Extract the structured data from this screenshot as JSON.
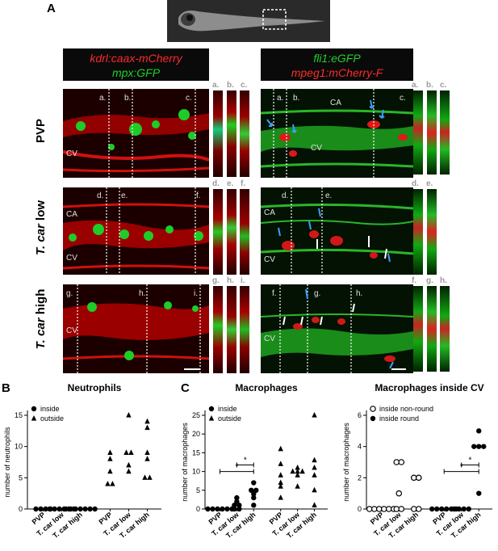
{
  "panel_a_label": "A",
  "panel_b_label": "B",
  "panel_c_label": "C",
  "left_header": {
    "line1": "kdrl:caax-mCherry",
    "line2": "mpx:GFP",
    "line1_color": "#ff2a2a",
    "line2_color": "#22d02a"
  },
  "right_header": {
    "line1": "fli1:eGFP",
    "line2": "mpeg1:mCherry-F",
    "line1_color": "#22d02a",
    "line2_color": "#ff2a2a"
  },
  "rows": [
    {
      "label": "PVP",
      "italic_part": "",
      "plain_part": "PVP"
    },
    {
      "label": "T. car low",
      "italic_part": "T. car",
      "plain_part": " low"
    },
    {
      "label": "T. car high",
      "italic_part": "T. car",
      "plain_part": " high"
    }
  ],
  "left_slices": [
    [
      "a.",
      "b.",
      "c."
    ],
    [
      "d.",
      "e.",
      "f."
    ],
    [
      "g.",
      "h.",
      "i."
    ]
  ],
  "right_slices": [
    [
      "a.",
      "b.",
      "c."
    ],
    [
      "d.",
      "e."
    ],
    [
      "f.",
      "g.",
      "h."
    ]
  ],
  "vessel_labels": {
    "ca": "CA",
    "cv": "CV"
  },
  "chart_data": [
    {
      "type": "scatter",
      "title": "Neutrophils",
      "ylabel": "number of neutrophils",
      "xlabel": "",
      "ylim": [
        0,
        15
      ],
      "yticks": [
        0,
        5,
        10,
        15
      ],
      "categories": [
        "PVP",
        "T. car low",
        "T. car high",
        "PVP",
        "T. car low",
        "T. car high"
      ],
      "legend": [
        {
          "name": "inside",
          "marker": "circle"
        },
        {
          "name": "outside",
          "marker": "triangle"
        }
      ],
      "legend_position": "top-left",
      "series": [
        {
          "name": "inside",
          "marker": "circle",
          "groups": [
            [
              0,
              0,
              0,
              0
            ],
            [
              0,
              0,
              0,
              0,
              0,
              0
            ],
            [
              0,
              0,
              0,
              0,
              0,
              0,
              0
            ]
          ]
        },
        {
          "name": "outside",
          "marker": "triangle",
          "groups": [
            [
              4,
              4,
              6,
              8,
              9
            ],
            [
              6,
              7,
              9,
              9,
              15
            ],
            [
              5,
              5,
              8,
              9,
              13,
              14
            ]
          ]
        }
      ],
      "significance": []
    },
    {
      "type": "scatter",
      "title": "Macrophages",
      "ylabel": "number of macrophages",
      "xlabel": "",
      "ylim": [
        0,
        25
      ],
      "yticks": [
        0,
        5,
        10,
        15,
        20,
        25
      ],
      "categories": [
        "PVP",
        "T. car low",
        "T. car high",
        "PVP",
        "T. car low",
        "T. car high"
      ],
      "legend": [
        {
          "name": "inside",
          "marker": "circle"
        },
        {
          "name": "outside",
          "marker": "triangle"
        }
      ],
      "legend_position": "top-left",
      "series": [
        {
          "name": "inside",
          "marker": "circle",
          "groups": [
            [
              0,
              0,
              0,
              0,
              0,
              0
            ],
            [
              0,
              0,
              1,
              1,
              2,
              3
            ],
            [
              1,
              3,
              4,
              5,
              5,
              7
            ]
          ]
        },
        {
          "name": "outside",
          "marker": "triangle",
          "groups": [
            [
              3,
              6,
              7,
              9,
              12,
              16
            ],
            [
              6,
              9,
              10,
              10,
              10,
              11
            ],
            [
              1,
              5,
              9,
              11,
              13,
              25
            ]
          ]
        }
      ],
      "significance": [
        {
          "from": 0,
          "to": 2,
          "label": "*"
        },
        {
          "from": 1,
          "to": 2,
          "label": "*"
        }
      ]
    },
    {
      "type": "scatter",
      "title": "Macrophages inside CV",
      "ylabel": "number of macrophages",
      "xlabel": "",
      "ylim": [
        0,
        6
      ],
      "yticks": [
        0,
        2,
        4,
        6
      ],
      "categories": [
        "PVP",
        "T. car low",
        "T. car high",
        "PVP",
        "T. car low",
        "T. car high"
      ],
      "legend": [
        {
          "name": "inside non-round",
          "marker": "open-circle"
        },
        {
          "name": "inside round",
          "marker": "circle"
        }
      ],
      "legend_position": "top-left",
      "series": [
        {
          "name": "inside non-round",
          "marker": "open-circle",
          "groups": [
            [
              0,
              0,
              0,
              0,
              0,
              0
            ],
            [
              0,
              0,
              1,
              3,
              3
            ],
            [
              0,
              0,
              2,
              2
            ]
          ]
        },
        {
          "name": "inside round",
          "marker": "circle",
          "groups": [
            [
              0,
              0,
              0,
              0,
              0,
              0
            ],
            [
              0,
              0,
              0,
              0
            ],
            [
              1,
              4,
              4,
              4,
              5
            ]
          ]
        }
      ],
      "significance": [
        {
          "from": 3,
          "to": 5,
          "label": "*"
        },
        {
          "from": 4,
          "to": 5,
          "label": "*"
        }
      ]
    }
  ]
}
